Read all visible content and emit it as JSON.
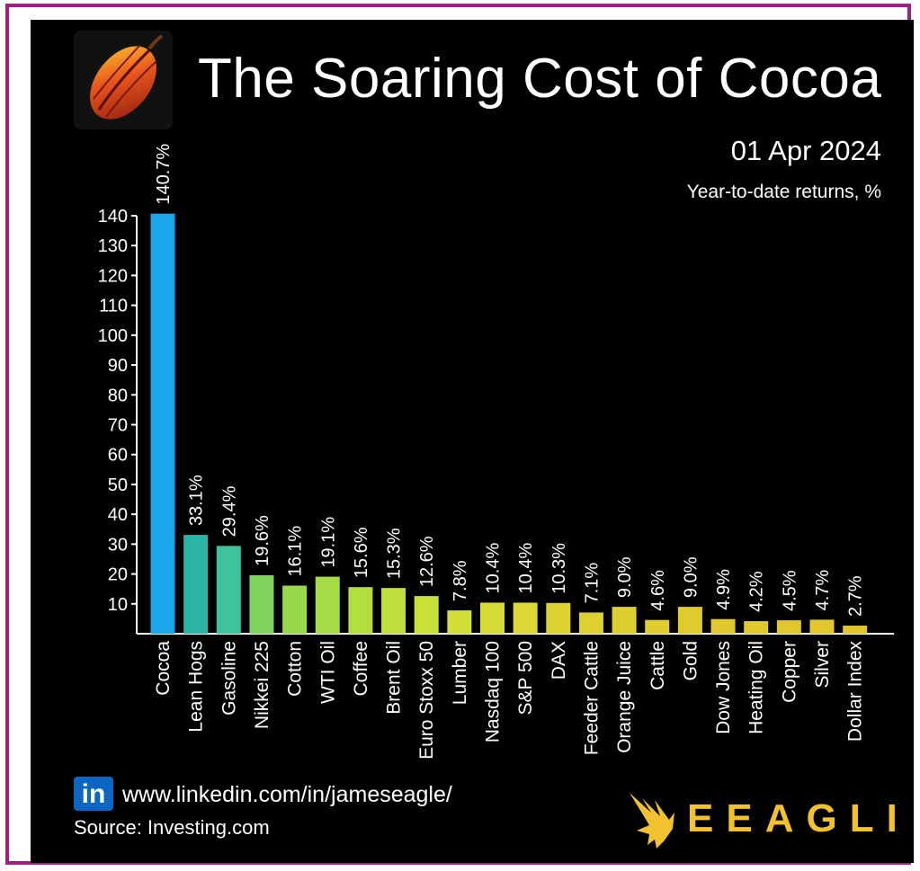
{
  "header": {
    "title": "The Soaring Cost of Cocoa",
    "date": "01 Apr 2024",
    "subtitle": "Year-to-date returns, %"
  },
  "footer": {
    "linkedin_badge": "in",
    "url": "www.linkedin.com/in/jameseagle/",
    "source": "Source: Investing.com",
    "brand": "EEAGLI"
  },
  "icons": {
    "logo": "cocoa-pod-icon",
    "social": "linkedin-icon",
    "brand": "eagle-icon"
  },
  "colors": {
    "background": "#000000",
    "frame": "#a1207f",
    "axis": "#ffffff",
    "text": "#ffffff",
    "brand": "#f2c12e"
  },
  "chart_data": {
    "type": "bar",
    "ylim": [
      0,
      140
    ],
    "yticks": [
      10,
      20,
      30,
      40,
      50,
      60,
      70,
      80,
      90,
      100,
      110,
      120,
      130,
      140
    ],
    "grid": false,
    "categories": [
      "Cocoa",
      "Lean Hogs",
      "Gasoline",
      "Nikkei 225",
      "Cotton",
      "WTI Oil",
      "Coffee",
      "Brent Oil",
      "Euro Stoxx 50",
      "Lumber",
      "Nasdaq 100",
      "S&P 500",
      "DAX",
      "Feeder Cattle",
      "Orange Juice",
      "Cattle",
      "Gold",
      "Dow Jones",
      "Heating Oil",
      "Copper",
      "Silver",
      "Dollar Index"
    ],
    "values": [
      140.7,
      33.1,
      29.4,
      19.6,
      16.1,
      19.1,
      15.6,
      15.3,
      12.6,
      7.8,
      10.4,
      10.4,
      10.3,
      7.1,
      9.0,
      4.6,
      9.0,
      4.9,
      4.2,
      4.5,
      4.7,
      2.7
    ],
    "labels": [
      "140.7%",
      "33.1%",
      "29.4%",
      "19.6%",
      "16.1%",
      "19.1%",
      "15.6%",
      "15.3%",
      "12.6%",
      "7.8%",
      "10.4%",
      "10.4%",
      "10.3%",
      "7.1%",
      "9.0%",
      "4.6%",
      "9.0%",
      "4.9%",
      "4.2%",
      "4.5%",
      "4.7%",
      "2.7%"
    ],
    "colors": [
      "#1aa6ea",
      "#2bb3a6",
      "#3ec49a",
      "#7fd45c",
      "#98d94c",
      "#a6dc46",
      "#b3de40",
      "#bfe03c",
      "#c9e03a",
      "#d2df38",
      "#d7dd36",
      "#dad834",
      "#dcd332",
      "#ded031",
      "#dfce30",
      "#e0cc2f",
      "#e0cb2e",
      "#e1c92d",
      "#e1c82d",
      "#e1c72c",
      "#e2c62c",
      "#e2c52b"
    ]
  }
}
